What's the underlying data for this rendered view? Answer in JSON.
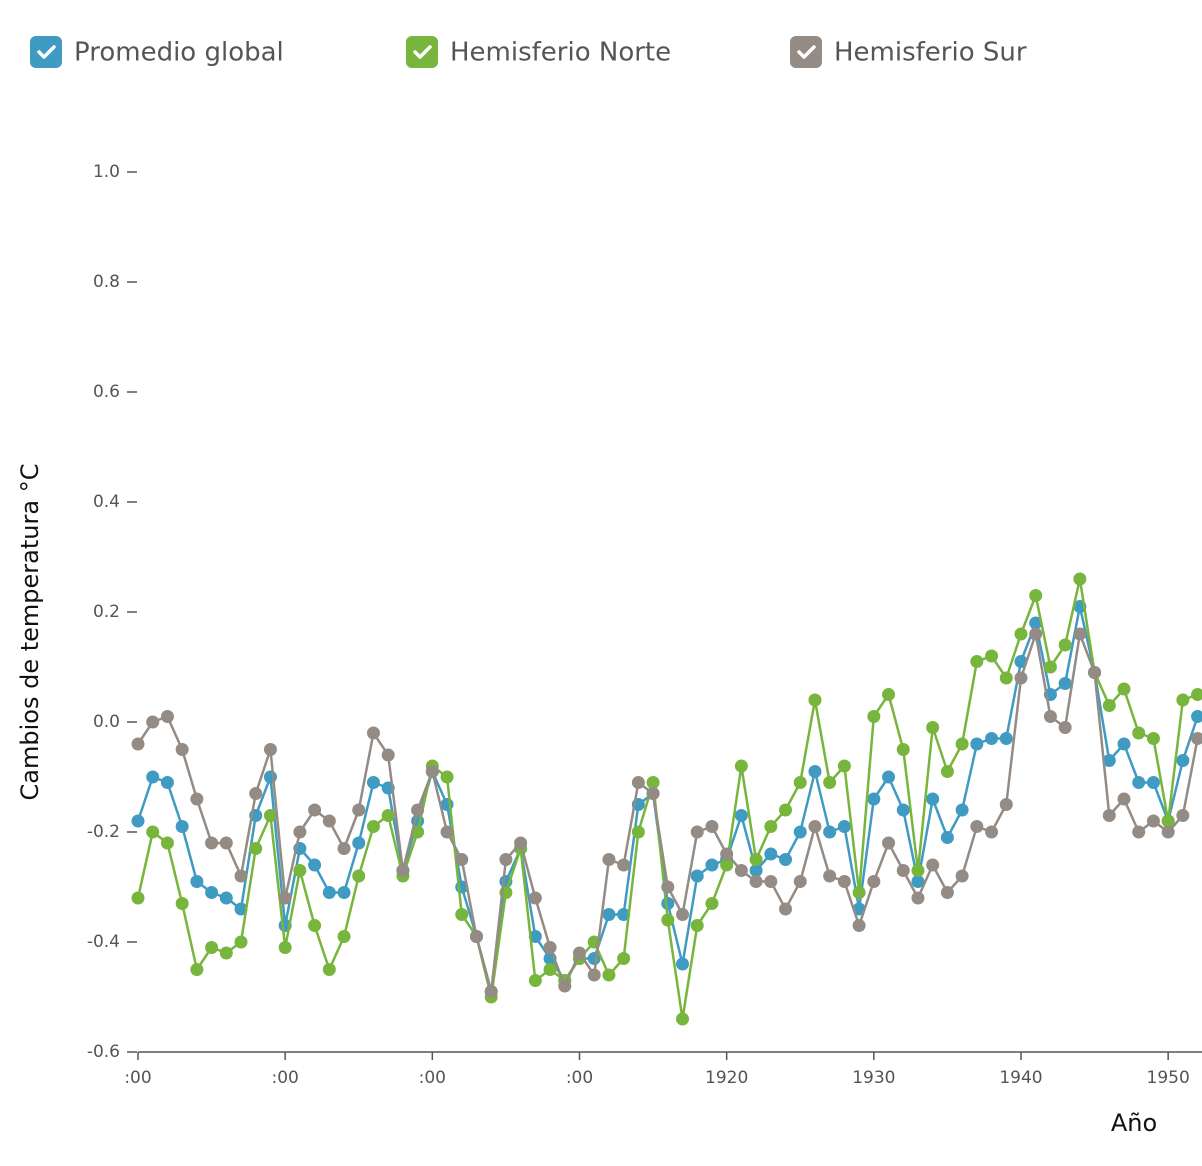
{
  "chart_data": {
    "type": "line",
    "y_label": "Cambios de temperatura °C",
    "x_label": "Año",
    "x": [
      1880,
      1881,
      1882,
      1883,
      1884,
      1885,
      1886,
      1887,
      1888,
      1889,
      1890,
      1891,
      1892,
      1893,
      1894,
      1895,
      1896,
      1897,
      1898,
      1899,
      1900,
      1901,
      1902,
      1903,
      1904,
      1905,
      1906,
      1907,
      1908,
      1909,
      1910,
      1911,
      1912,
      1913,
      1914,
      1915,
      1916,
      1917,
      1918,
      1919,
      1920,
      1921,
      1922,
      1923,
      1924,
      1925,
      1926,
      1927,
      1928,
      1929,
      1930,
      1931,
      1932,
      1933,
      1934,
      1935,
      1936,
      1937,
      1938,
      1939,
      1940,
      1941,
      1942,
      1943,
      1944,
      1945,
      1946,
      1947,
      1948,
      1949,
      1950,
      1951,
      1952
    ],
    "series": [
      {
        "name": "Promedio global",
        "color": "#3f9bc1",
        "values": [
          -0.18,
          -0.1,
          -0.11,
          -0.19,
          -0.29,
          -0.31,
          -0.32,
          -0.34,
          -0.17,
          -0.1,
          -0.37,
          -0.23,
          -0.26,
          -0.31,
          -0.31,
          -0.22,
          -0.11,
          -0.12,
          -0.27,
          -0.18,
          -0.09,
          -0.15,
          -0.3,
          -0.39,
          -0.49,
          -0.29,
          -0.23,
          -0.39,
          -0.43,
          -0.47,
          -0.43,
          -0.43,
          -0.35,
          -0.35,
          -0.15,
          -0.13,
          -0.33,
          -0.44,
          -0.28,
          -0.26,
          -0.25,
          -0.17,
          -0.27,
          -0.24,
          -0.25,
          -0.2,
          -0.09,
          -0.2,
          -0.19,
          -0.34,
          -0.14,
          -0.1,
          -0.16,
          -0.29,
          -0.14,
          -0.21,
          -0.16,
          -0.04,
          -0.03,
          -0.03,
          0.11,
          0.18,
          0.05,
          0.07,
          0.21,
          0.09,
          -0.07,
          -0.04,
          -0.11,
          -0.11,
          -0.18,
          -0.07,
          0.01
        ]
      },
      {
        "name": "Hemisferio Norte",
        "color": "#77b53c",
        "values": [
          -0.32,
          -0.2,
          -0.22,
          -0.33,
          -0.45,
          -0.41,
          -0.42,
          -0.4,
          -0.23,
          -0.17,
          -0.41,
          -0.27,
          -0.37,
          -0.45,
          -0.39,
          -0.28,
          -0.19,
          -0.17,
          -0.28,
          -0.2,
          -0.08,
          -0.1,
          -0.35,
          -0.39,
          -0.5,
          -0.31,
          -0.23,
          -0.47,
          -0.45,
          -0.47,
          -0.43,
          -0.4,
          -0.46,
          -0.43,
          -0.2,
          -0.11,
          -0.36,
          -0.54,
          -0.37,
          -0.33,
          -0.26,
          -0.08,
          -0.25,
          -0.19,
          -0.16,
          -0.11,
          0.04,
          -0.11,
          -0.08,
          -0.31,
          0.01,
          0.05,
          -0.05,
          -0.27,
          -0.01,
          -0.09,
          -0.04,
          0.11,
          0.12,
          0.08,
          0.16,
          0.23,
          0.1,
          0.14,
          0.26,
          0.09,
          0.03,
          0.06,
          -0.02,
          -0.03,
          -0.18,
          0.04,
          0.05
        ]
      },
      {
        "name": "Hemisferio Sur",
        "color": "#948b85",
        "values": [
          -0.04,
          0.0,
          0.01,
          -0.05,
          -0.14,
          -0.22,
          -0.22,
          -0.28,
          -0.13,
          -0.05,
          -0.32,
          -0.2,
          -0.16,
          -0.18,
          -0.23,
          -0.16,
          -0.02,
          -0.06,
          -0.27,
          -0.16,
          -0.09,
          -0.2,
          -0.25,
          -0.39,
          -0.49,
          -0.25,
          -0.22,
          -0.32,
          -0.41,
          -0.48,
          -0.42,
          -0.46,
          -0.25,
          -0.26,
          -0.11,
          -0.13,
          -0.3,
          -0.35,
          -0.2,
          -0.19,
          -0.24,
          -0.27,
          -0.29,
          -0.29,
          -0.34,
          -0.29,
          -0.19,
          -0.28,
          -0.29,
          -0.37,
          -0.29,
          -0.22,
          -0.27,
          -0.32,
          -0.26,
          -0.31,
          -0.28,
          -0.19,
          -0.2,
          -0.15,
          0.08,
          0.16,
          0.01,
          -0.01,
          0.16,
          0.09,
          -0.17,
          -0.14,
          -0.2,
          -0.18,
          -0.2,
          -0.17,
          -0.03
        ]
      }
    ],
    "xlim": [
      1880,
      1952.3
    ],
    "xticks": [
      {
        "value": 1880,
        "label": ":00"
      },
      {
        "value": 1890,
        "label": ":00"
      },
      {
        "value": 1900,
        "label": ":00"
      },
      {
        "value": 1910,
        "label": ":00"
      },
      1920,
      1930,
      1940,
      1950
    ],
    "ylim": [
      -0.6,
      1.0
    ],
    "yticks": [
      -0.6,
      -0.4,
      -0.2,
      {
        "value": 0,
        "label": "0.0"
      },
      0.2,
      0.4,
      0.6,
      0.8,
      {
        "value": 1,
        "label": "1.0"
      }
    ]
  }
}
